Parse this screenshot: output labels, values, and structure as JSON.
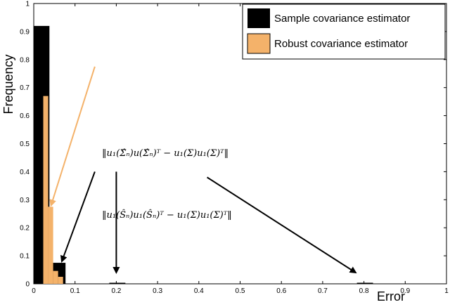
{
  "chart_data": {
    "type": "bar",
    "xlabel": "Error",
    "ylabel": "Frequency",
    "xlim": [
      0,
      1
    ],
    "ylim": [
      0,
      1
    ],
    "xticks": [
      "0",
      "0.1",
      "0.2",
      "0.3",
      "0.4",
      "0.5",
      "0.6",
      "0.7",
      "0.8",
      "0.9",
      "1"
    ],
    "yticks": [
      "0",
      "0.1",
      "0.2",
      "0.3",
      "0.4",
      "0.5",
      "0.6",
      "0.7",
      "0.8",
      "0.9",
      "1"
    ],
    "grid": false,
    "legend_position": "top-right",
    "series": [
      {
        "name": "Sample covariance estimator",
        "color": "#000000",
        "bins": [
          {
            "x0": 0.0,
            "x1": 0.038,
            "value": 0.92
          },
          {
            "x0": 0.038,
            "x1": 0.077,
            "value": 0.075
          },
          {
            "x0": 0.183,
            "x1": 0.222,
            "value": 0.003
          },
          {
            "x0": 0.783,
            "x1": 0.822,
            "value": 0.003
          }
        ]
      },
      {
        "name": "Robust covariance estimator",
        "color": "#f4b26a",
        "bins": [
          {
            "x0": 0.011,
            "x1": 0.023,
            "value": 0.0
          },
          {
            "x0": 0.023,
            "x1": 0.035,
            "value": 0.67
          },
          {
            "x0": 0.035,
            "x1": 0.047,
            "value": 0.275
          },
          {
            "x0": 0.047,
            "x1": 0.059,
            "value": 0.046
          },
          {
            "x0": 0.059,
            "x1": 0.071,
            "value": 0.025
          }
        ]
      }
    ],
    "annotations": [
      {
        "name": "robust-error-annotation",
        "text": "‖u₁(Σ̂ₙ)u(Σ̂ₙ)ᵀ − u₁(Σ)u₁(Σ)ᵀ‖",
        "text_anchor": [
          0.165,
          0.8
        ],
        "arrows": [
          {
            "from": [
              0.148,
              0.775
            ],
            "to": [
              0.042,
              0.28
            ],
            "color": "#f4b26a"
          }
        ]
      },
      {
        "name": "sample-error-annotation",
        "text": "‖u₁(Ŝₙ)u₁(Ŝₙ)ᵀ − u₁(Σ)u₁(Σ)ᵀ‖",
        "text_anchor": [
          0.165,
          0.423
        ],
        "arrows": [
          {
            "from": [
              0.148,
              0.4
            ],
            "to": [
              0.068,
              0.08
            ],
            "color": "#000000"
          },
          {
            "from": [
              0.2,
              0.4
            ],
            "to": [
              0.2,
              0.04
            ],
            "color": "#000000"
          },
          {
            "from": [
              0.42,
              0.38
            ],
            "to": [
              0.78,
              0.04
            ],
            "color": "#000000"
          }
        ]
      }
    ]
  }
}
